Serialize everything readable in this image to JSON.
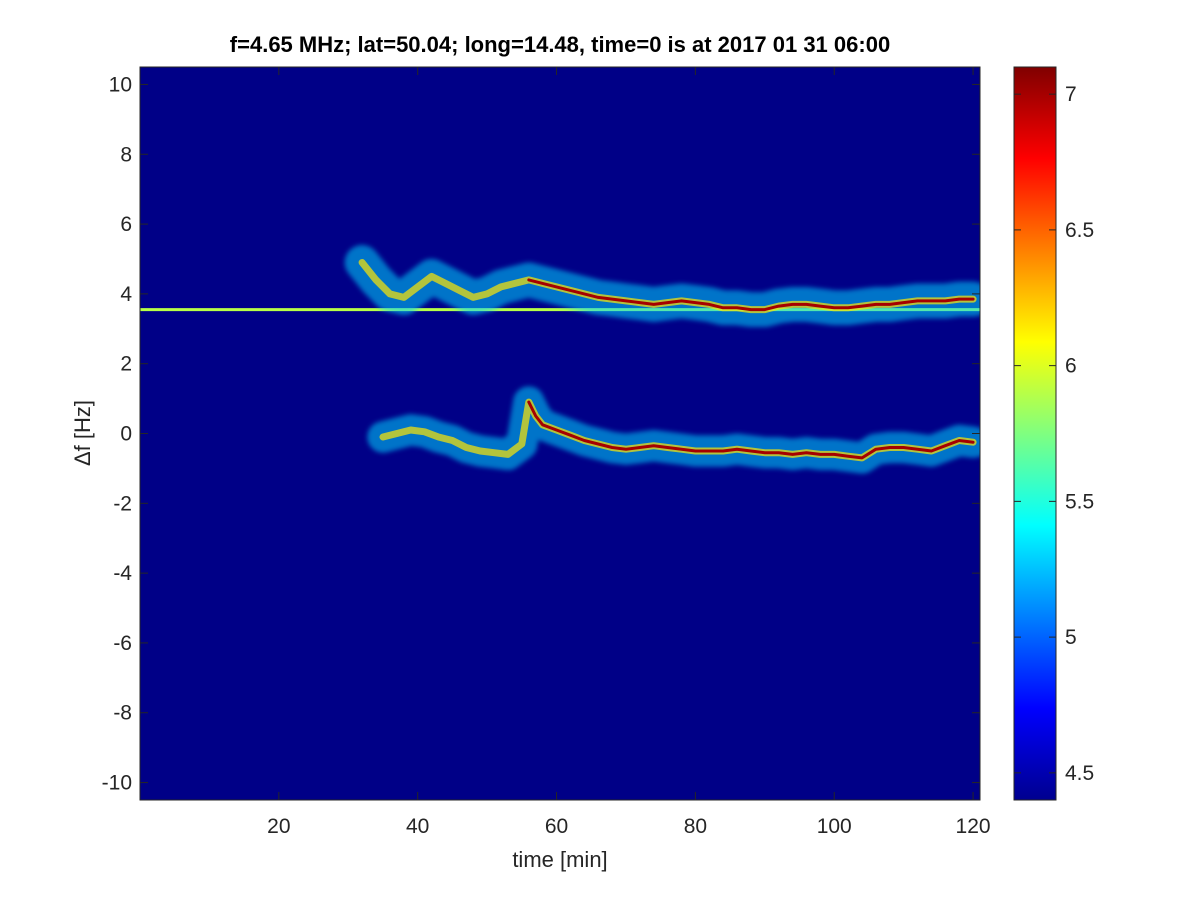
{
  "chart_data": {
    "type": "heatmap",
    "title": "f=4.65 MHz;  lat=50.04; long=14.48, time=0 is at 2017 01 31 06:00",
    "xlabel": "time [min]",
    "ylabel": "Δf [Hz]",
    "xlim": [
      0,
      121
    ],
    "ylim": [
      -10.5,
      10.5
    ],
    "x_ticks": [
      20,
      40,
      60,
      80,
      100,
      120
    ],
    "x_tick_labels": [
      "20",
      "40",
      "60",
      "80",
      "100",
      "120"
    ],
    "y_ticks": [
      10,
      8,
      6,
      4,
      2,
      0,
      -2,
      -4,
      -6,
      -8,
      -10
    ],
    "y_tick_labels": [
      "10",
      "8",
      "6",
      "4",
      "2",
      "0",
      "-2",
      "-4",
      "-6",
      "-8",
      "-10"
    ],
    "colorbar": {
      "colormap": "jet",
      "clim": [
        4.4,
        7.1
      ],
      "ticks": [
        7,
        6.5,
        6,
        5.5,
        5,
        4.5
      ],
      "tick_labels": [
        "7",
        "6.5",
        "6",
        "5.5",
        "5",
        "4.5"
      ]
    },
    "background_value": 4.42,
    "carrier_line": {
      "df": 3.55,
      "x_start": 0,
      "x_end": 121,
      "value": 5.9
    },
    "traces": [
      {
        "name": "upper",
        "points": [
          [
            32,
            4.9
          ],
          [
            34,
            4.4
          ],
          [
            36,
            4.0
          ],
          [
            38,
            3.9
          ],
          [
            40,
            4.2
          ],
          [
            42,
            4.5
          ],
          [
            44,
            4.3
          ],
          [
            46,
            4.1
          ],
          [
            48,
            3.9
          ],
          [
            50,
            4.0
          ],
          [
            52,
            4.2
          ],
          [
            54,
            4.3
          ],
          [
            56,
            4.4
          ],
          [
            58,
            4.3
          ],
          [
            60,
            4.2
          ],
          [
            62,
            4.1
          ],
          [
            64,
            4.0
          ],
          [
            66,
            3.9
          ],
          [
            68,
            3.85
          ],
          [
            70,
            3.8
          ],
          [
            72,
            3.75
          ],
          [
            74,
            3.7
          ],
          [
            76,
            3.75
          ],
          [
            78,
            3.8
          ],
          [
            80,
            3.75
          ],
          [
            82,
            3.7
          ],
          [
            84,
            3.6
          ],
          [
            86,
            3.6
          ],
          [
            88,
            3.55
          ],
          [
            90,
            3.55
          ],
          [
            92,
            3.65
          ],
          [
            94,
            3.7
          ],
          [
            96,
            3.7
          ],
          [
            98,
            3.65
          ],
          [
            100,
            3.6
          ],
          [
            102,
            3.6
          ],
          [
            104,
            3.65
          ],
          [
            106,
            3.7
          ],
          [
            108,
            3.7
          ],
          [
            110,
            3.75
          ],
          [
            112,
            3.8
          ],
          [
            114,
            3.8
          ],
          [
            116,
            3.8
          ],
          [
            118,
            3.85
          ],
          [
            120,
            3.85
          ]
        ],
        "core_from": 56,
        "core_value": 7.0,
        "halo_value": 5.3,
        "halo_width": 0.5
      },
      {
        "name": "lower",
        "points": [
          [
            35,
            -0.1
          ],
          [
            37,
            0.0
          ],
          [
            39,
            0.1
          ],
          [
            41,
            0.05
          ],
          [
            43,
            -0.1
          ],
          [
            45,
            -0.2
          ],
          [
            47,
            -0.4
          ],
          [
            49,
            -0.5
          ],
          [
            51,
            -0.55
          ],
          [
            53,
            -0.6
          ],
          [
            55,
            -0.3
          ],
          [
            56,
            0.9
          ],
          [
            57,
            0.5
          ],
          [
            58,
            0.25
          ],
          [
            60,
            0.1
          ],
          [
            62,
            -0.05
          ],
          [
            64,
            -0.2
          ],
          [
            66,
            -0.3
          ],
          [
            68,
            -0.4
          ],
          [
            70,
            -0.45
          ],
          [
            72,
            -0.4
          ],
          [
            74,
            -0.35
          ],
          [
            76,
            -0.4
          ],
          [
            78,
            -0.45
          ],
          [
            80,
            -0.5
          ],
          [
            82,
            -0.5
          ],
          [
            84,
            -0.5
          ],
          [
            86,
            -0.45
          ],
          [
            88,
            -0.5
          ],
          [
            90,
            -0.55
          ],
          [
            92,
            -0.55
          ],
          [
            94,
            -0.6
          ],
          [
            96,
            -0.55
          ],
          [
            98,
            -0.6
          ],
          [
            100,
            -0.6
          ],
          [
            102,
            -0.65
          ],
          [
            104,
            -0.7
          ],
          [
            106,
            -0.45
          ],
          [
            108,
            -0.4
          ],
          [
            110,
            -0.4
          ],
          [
            112,
            -0.45
          ],
          [
            114,
            -0.5
          ],
          [
            116,
            -0.35
          ],
          [
            118,
            -0.2
          ],
          [
            120,
            -0.25
          ]
        ],
        "core_from": 56,
        "core_value": 7.0,
        "halo_value": 5.3,
        "halo_width": 0.45
      }
    ]
  }
}
